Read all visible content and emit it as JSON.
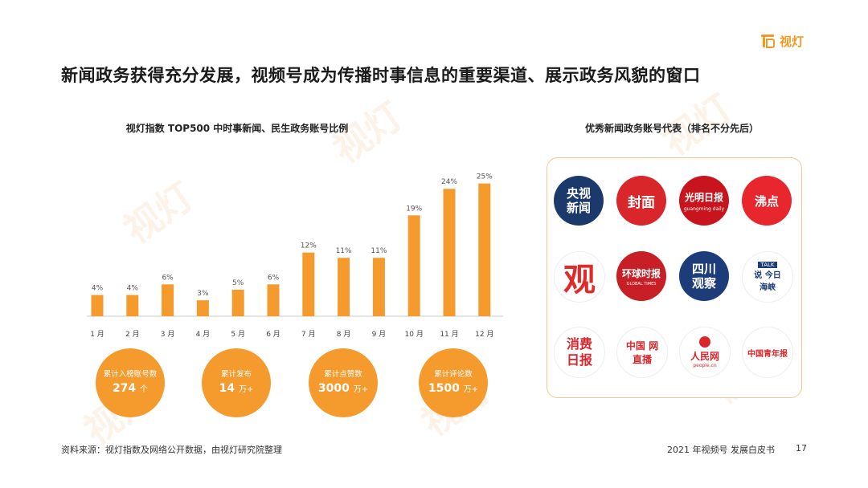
{
  "brand": {
    "name": "视灯",
    "accent": "#f29a1f"
  },
  "watermark_text": "视灯",
  "main_title": "新闻政务获得充分发展，视频号成为传播时事信息的重要渠道、展示政务风貌的窗口",
  "chart_data": {
    "type": "bar",
    "title": "视灯指数 TOP500 中时事新闻、民生政务账号比例",
    "categories": [
      "1 月",
      "2 月",
      "3 月",
      "4 月",
      "5 月",
      "6 月",
      "7 月",
      "8 月",
      "9 月",
      "10 月",
      "11 月",
      "12 月"
    ],
    "values": [
      4,
      4,
      6,
      3,
      5,
      6,
      12,
      11,
      11,
      19,
      24,
      25
    ],
    "data_labels": [
      "4%",
      "4%",
      "6%",
      "3%",
      "5%",
      "6%",
      "12%",
      "11%",
      "11%",
      "19%",
      "24%",
      "25%"
    ],
    "unit": "%",
    "ylim": [
      0,
      26
    ],
    "grid": false,
    "bar_color": "#f59a2c",
    "xlabel": "",
    "ylabel": ""
  },
  "stats": [
    {
      "label": "累计入榜账号数",
      "value": "274",
      "unit": "个"
    },
    {
      "label": "累计发布",
      "value": "14",
      "unit": "万+"
    },
    {
      "label": "累计点赞数",
      "value": "3000",
      "unit": "万+"
    },
    {
      "label": "累计评论数",
      "value": "1500",
      "unit": "万+"
    }
  ],
  "right_panel": {
    "title": "优秀新闻政务账号代表（排名不分先后）",
    "accounts": [
      {
        "text": "央视 新闻",
        "bg": "#1b3a6b"
      },
      {
        "text": "封面",
        "bg": "#d9262b"
      },
      {
        "text": "光明日报",
        "sub": "guangming daily",
        "bg": "#c8141d"
      },
      {
        "text": "沸点",
        "bg": "#e8262d"
      },
      {
        "text": "观",
        "bg": "#ffffff"
      },
      {
        "text": "环球时报",
        "sub": "GLOBAL TIMES",
        "bg": "#c81e25"
      },
      {
        "text": "四川 观察",
        "bg": "#1d3d7a"
      },
      {
        "text": "说 今日 海峡",
        "sub": "TALK",
        "bg": "#ffffff"
      },
      {
        "text": "消费 日报",
        "bg": "#ffffff"
      },
      {
        "text": "中国 网直播",
        "bg": "#ffffff"
      },
      {
        "text": "人民网",
        "sub": "people.cn",
        "bg": "#ffffff"
      },
      {
        "text": "中国青年报",
        "bg": "#ffffff"
      }
    ]
  },
  "footer": {
    "source": "资料来源：视灯指数及网络公开数据，由视灯研究院整理",
    "report": "2021 年视频号  发展白皮书",
    "page": "17"
  }
}
